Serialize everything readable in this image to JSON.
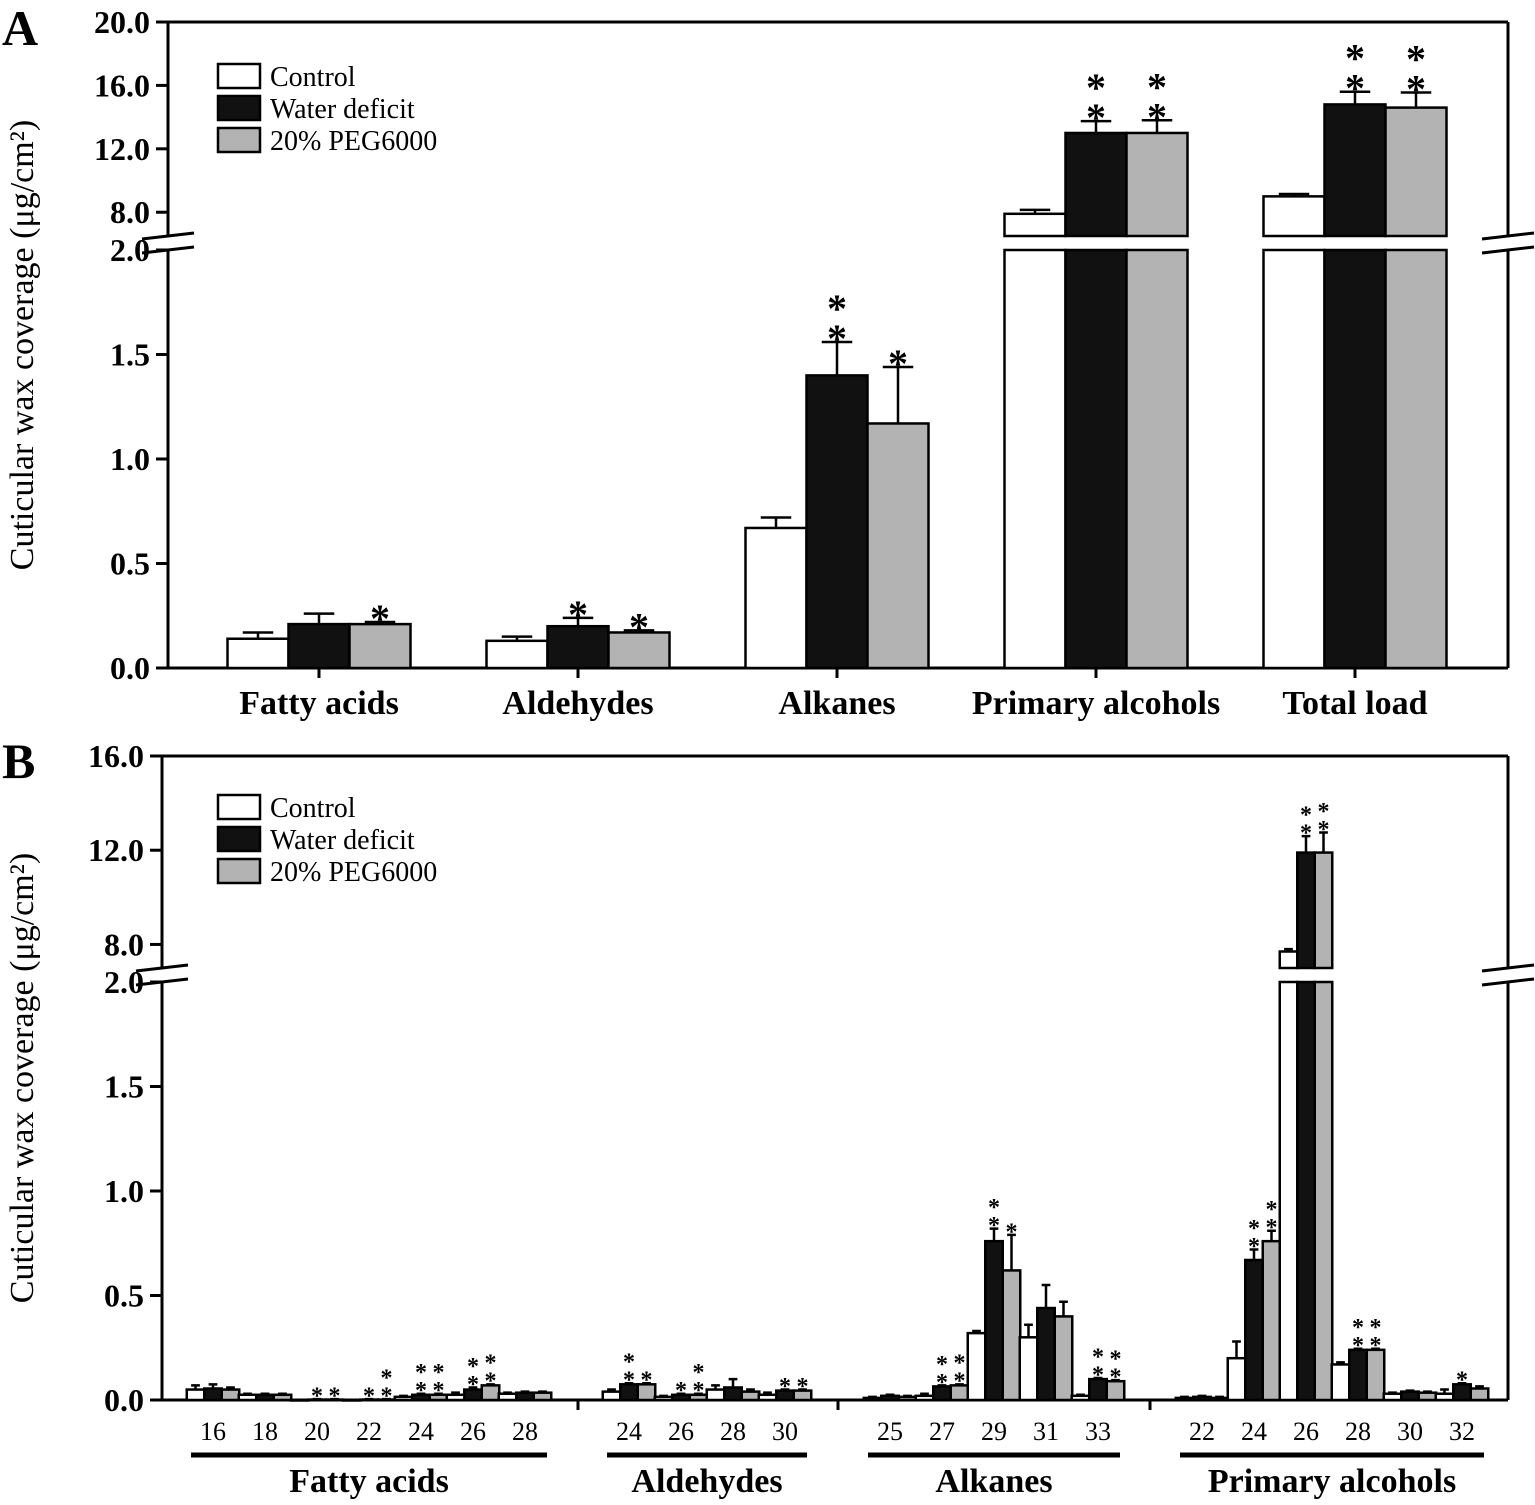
{
  "colors": {
    "control": "#ffffff",
    "water_deficit": "#111111",
    "peg": "#b3b3b3",
    "axis": "#000000"
  },
  "chart_data": [
    {
      "panel": "A",
      "type": "bar",
      "ylabel": "Cuticular wax coverage (μg/cm²)",
      "y_axis_lower": {
        "range": [
          0,
          2.0
        ],
        "ticks": [
          "0.0",
          "0.5",
          "1.0",
          "1.5",
          "2.0"
        ]
      },
      "y_axis_upper": {
        "range": [
          6.5,
          20.0
        ],
        "ticks": [
          "8.0",
          "12.0",
          "16.0",
          "20.0"
        ]
      },
      "legend": [
        "Control",
        "Water deficit",
        "20% PEG6000"
      ],
      "categories": [
        "Fatty acids",
        "Aldehydes",
        "Alkanes",
        "Primary alcohols",
        "Total load"
      ],
      "series": [
        {
          "name": "Control",
          "values": [
            0.14,
            0.13,
            0.67,
            7.9,
            9.0
          ],
          "errors": [
            0.03,
            0.02,
            0.05,
            0.25,
            0.15
          ]
        },
        {
          "name": "Water deficit",
          "values": [
            0.21,
            0.2,
            1.4,
            13.0,
            14.8
          ],
          "errors": [
            0.05,
            0.04,
            0.16,
            0.75,
            0.8
          ]
        },
        {
          "name": "20% PEG6000",
          "values": [
            0.21,
            0.17,
            1.17,
            13.0,
            14.6
          ],
          "errors": [
            0.01,
            0.01,
            0.27,
            0.8,
            0.95
          ]
        }
      ],
      "significance": [
        [
          "",
          "",
          "",
          "",
          ""
        ],
        [
          "",
          "*",
          "**",
          "**",
          "**"
        ],
        [
          "*",
          "*",
          "*",
          "**",
          "**"
        ]
      ]
    },
    {
      "panel": "B",
      "type": "bar",
      "ylabel": "Cuticular wax coverage (μg/cm²)",
      "y_axis_lower": {
        "range": [
          0,
          2.0
        ],
        "ticks": [
          "0.0",
          "0.5",
          "1.0",
          "1.5",
          "2.0"
        ]
      },
      "y_axis_upper": {
        "range": [
          7.0,
          16.0
        ],
        "ticks": [
          "8.0",
          "12.0",
          "16.0"
        ]
      },
      "legend": [
        "Control",
        "Water deficit",
        "20% PEG6000"
      ],
      "groups": [
        {
          "name": "Fatty acids",
          "chains": [
            "16",
            "18",
            "20",
            "22",
            "24",
            "26",
            "28"
          ]
        },
        {
          "name": "Aldehydes",
          "chains": [
            "24",
            "26",
            "28",
            "30"
          ]
        },
        {
          "name": "Alkanes",
          "chains": [
            "25",
            "27",
            "29",
            "31",
            "33"
          ]
        },
        {
          "name": "Primary alcohols",
          "chains": [
            "22",
            "24",
            "26",
            "28",
            "30",
            "32"
          ]
        }
      ],
      "series": [
        {
          "name": "Control",
          "values": [
            0.05,
            0.025,
            0,
            0,
            0.015,
            0.025,
            0.03,
            0.04,
            0.015,
            0.05,
            0.025,
            0.01,
            0.02,
            0.32,
            0.3,
            0.02,
            0.01,
            0.2,
            7.7,
            0.17,
            0.03,
            0.03
          ],
          "errors": [
            0.02,
            0.005,
            0,
            0,
            0.005,
            0.01,
            0.005,
            0.01,
            0.005,
            0.02,
            0.01,
            0.005,
            0.01,
            0.01,
            0.06,
            0.005,
            0.005,
            0.08,
            0.1,
            0.01,
            0.005,
            0.02
          ]
        },
        {
          "name": "Water deficit",
          "values": [
            0.055,
            0.025,
            0.002,
            0.002,
            0.025,
            0.05,
            0.035,
            0.075,
            0.025,
            0.06,
            0.045,
            0.02,
            0.065,
            0.76,
            0.44,
            0.1,
            0.015,
            0.67,
            11.9,
            0.24,
            0.04,
            0.075
          ],
          "errors": [
            0.02,
            0.005,
            0.002,
            0.002,
            0.005,
            0.01,
            0.005,
            0.005,
            0.005,
            0.04,
            0.005,
            0.005,
            0.005,
            0.06,
            0.11,
            0.005,
            0.005,
            0.05,
            0.7,
            0.005,
            0.005,
            0.005
          ]
        },
        {
          "name": "20% PEG6000",
          "values": [
            0.05,
            0.025,
            0.002,
            0.002,
            0.025,
            0.07,
            0.035,
            0.075,
            0.025,
            0.04,
            0.045,
            0.015,
            0.07,
            0.62,
            0.4,
            0.09,
            0.01,
            0.76,
            11.9,
            0.24,
            0.035,
            0.055
          ],
          "errors": [
            0.01,
            0.005,
            0.002,
            0.002,
            0.005,
            0.005,
            0.005,
            0.005,
            0.005,
            0.01,
            0.005,
            0.005,
            0.005,
            0.17,
            0.07,
            0.005,
            0.005,
            0.05,
            0.85,
            0.005,
            0.005,
            0.01
          ]
        }
      ],
      "significance": [
        [
          "",
          "",
          "",
          "",
          "",
          "",
          "",
          "",
          "",
          "",
          "",
          "",
          "",
          "",
          "",
          "",
          "",
          "",
          "",
          "",
          "",
          ""
        ],
        [
          "",
          "",
          "*",
          "*",
          "**",
          "**",
          "",
          "**",
          "*",
          "",
          "*",
          "",
          "**",
          "**",
          "",
          "**",
          "",
          "**",
          "**",
          "**",
          "",
          "*"
        ],
        [
          "",
          "",
          "*",
          "**",
          "**",
          "**",
          "",
          "*",
          "**",
          "",
          "*",
          "",
          "**",
          "*",
          "",
          "**",
          "",
          "**",
          "**",
          "**",
          "",
          ""
        ]
      ]
    }
  ]
}
